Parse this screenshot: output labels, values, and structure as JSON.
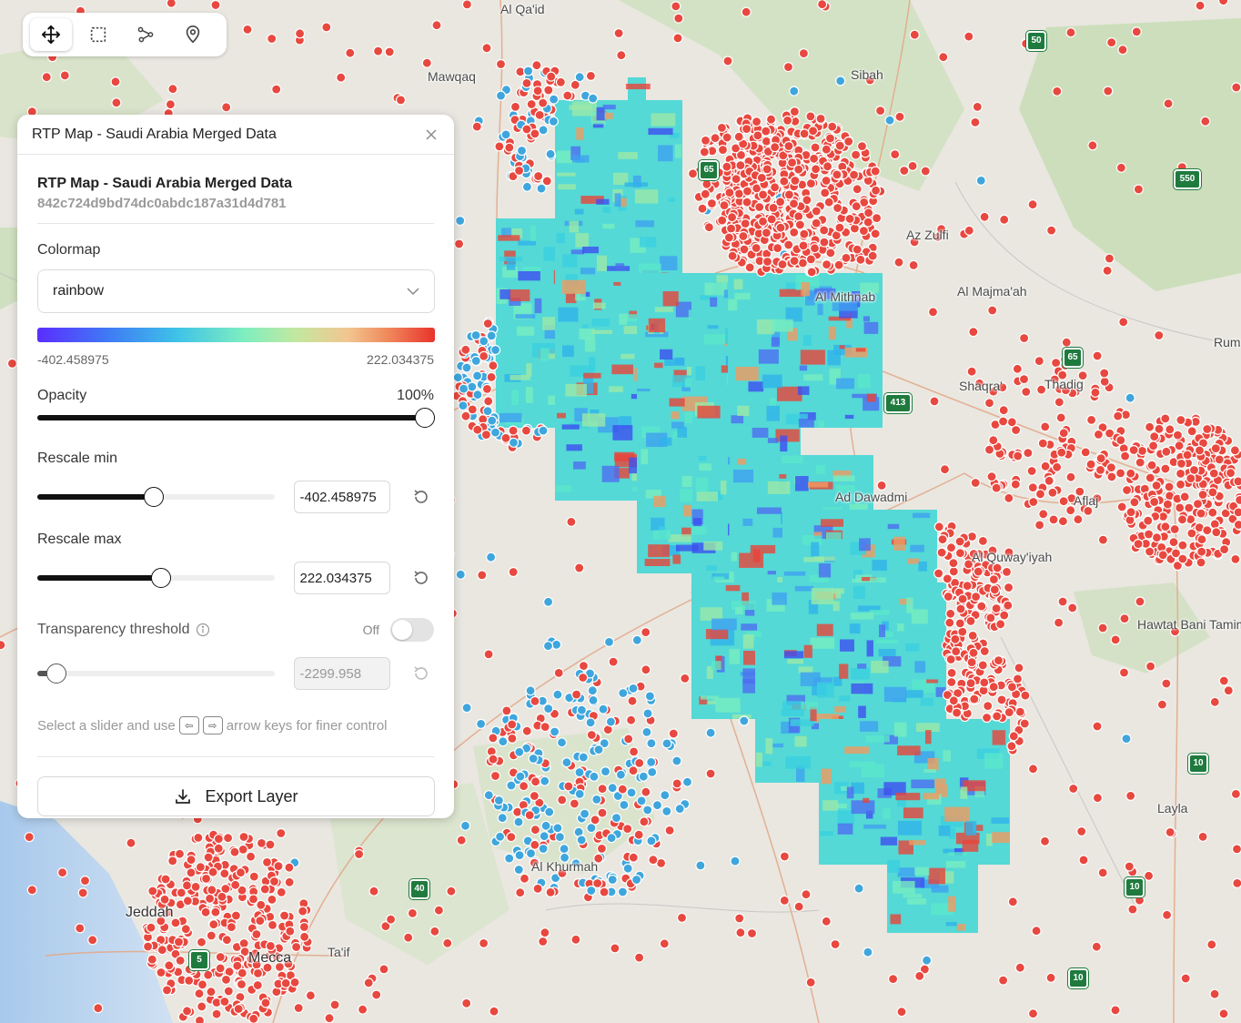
{
  "map": {
    "labels": [
      {
        "text": "Al Qa'id",
        "big": false
      },
      {
        "text": "Mawqaq",
        "big": false
      },
      {
        "text": "Sibah",
        "big": false
      },
      {
        "text": "Az Zulfi",
        "big": false
      },
      {
        "text": "Al Mithnab",
        "big": false
      },
      {
        "text": "Al Majma'ah",
        "big": false
      },
      {
        "text": "Shaqra'",
        "big": false
      },
      {
        "text": "Thadig",
        "big": false
      },
      {
        "text": "Rumah",
        "big": false
      },
      {
        "text": "Ad Dawadmi",
        "big": false
      },
      {
        "text": "Al Quway'iyah",
        "big": false
      },
      {
        "text": "Hawtat Bani Tamim",
        "big": false
      },
      {
        "text": "Layla",
        "big": false
      },
      {
        "text": "Al Khurmah",
        "big": false
      },
      {
        "text": "Jeddah",
        "big": true
      },
      {
        "text": "Mecca",
        "big": true
      },
      {
        "text": "Ta'if",
        "big": false
      },
      {
        "text": "Aflaj",
        "big": false
      }
    ],
    "shields": [
      "50",
      "550",
      "65",
      "413",
      "65",
      "10",
      "10",
      "10",
      "40",
      "5"
    ]
  },
  "toolbar": {
    "tools": [
      {
        "name": "pan-tool",
        "icon": "move-icon",
        "active": true
      },
      {
        "name": "select-tool",
        "icon": "dashed-rectangle-icon",
        "active": false
      },
      {
        "name": "path-tool",
        "icon": "route-icon",
        "active": false
      },
      {
        "name": "marker-tool",
        "icon": "map-pin-icon",
        "active": false
      }
    ]
  },
  "panel": {
    "header_title": "RTP Map - Saudi Arabia Merged Data",
    "close_icon": "close-icon",
    "layer_name": "RTP Map - Saudi Arabia Merged Data",
    "layer_id": "842c724d9bd74dc0abdc187a31d4d781",
    "colormap_label": "Colormap",
    "colormap_value": "rainbow",
    "range_min": "-402.458975",
    "range_max": "222.034375",
    "opacity_label": "Opacity",
    "opacity_value": "100%",
    "opacity_fraction": 1.0,
    "rescale_min_label": "Rescale min",
    "rescale_min_value": "-402.458975",
    "rescale_min_fraction": 0.49,
    "rescale_max_label": "Rescale max",
    "rescale_max_value": "222.034375",
    "rescale_max_fraction": 0.52,
    "transparency_label": "Transparency threshold",
    "transparency_state": "Off",
    "transparency_value": "-2299.958",
    "transparency_fraction": 0.08,
    "hint_before": "Select a slider and use",
    "hint_after": "arrow keys for finer control",
    "export_label": "Export Layer",
    "colors": {
      "accent": "#111111",
      "red_points": "#e8483f",
      "blue_points": "#3fa6dd"
    }
  }
}
